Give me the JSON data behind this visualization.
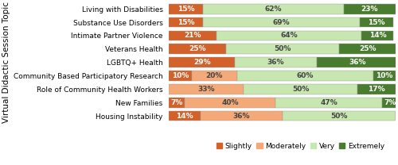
{
  "categories": [
    "Living with Disabilities",
    "Substance Use Disorders",
    "Intimate Partner Violence",
    "Veterans Health",
    "LGBTQ+ Health",
    "Community Based Participatory Research",
    "Role of Community Health Workers",
    "New Families",
    "Housing Instability"
  ],
  "slightly": [
    15,
    15,
    21,
    25,
    29,
    10,
    0,
    7,
    14
  ],
  "moderately": [
    0,
    0,
    0,
    0,
    0,
    20,
    33,
    40,
    36
  ],
  "very": [
    62,
    69,
    64,
    50,
    36,
    60,
    50,
    47,
    50
  ],
  "extremely": [
    23,
    15,
    14,
    25,
    36,
    10,
    17,
    7,
    0
  ],
  "slightly_labels": [
    "15%",
    "15%",
    "21%",
    "25%",
    "29%",
    "10%",
    "",
    "7%",
    "14%"
  ],
  "moderately_labels": [
    "",
    "",
    "",
    "",
    "",
    "20%",
    "33%",
    "40%",
    "36%"
  ],
  "very_labels": [
    "62%",
    "69%",
    "64%",
    "50%",
    "36%",
    "60%",
    "50%",
    "47%",
    "50%"
  ],
  "extremely_labels": [
    "23%",
    "15%",
    "14%",
    "25%",
    "36%",
    "10%",
    "17%",
    "7%",
    ""
  ],
  "color_slightly": "#d2622a",
  "color_moderately": "#f4aa78",
  "color_very": "#c8e6b0",
  "color_extremely": "#4a7c2f",
  "ylabel": "Virtual Didactic Session Topic",
  "legend_labels": [
    "Slightly",
    "Moderately",
    "Very",
    "Extremely"
  ],
  "bar_height": 0.75,
  "fontsize_labels": 6.5,
  "fontsize_ticks": 6.5,
  "fontsize_legend": 6.5,
  "fontsize_ylabel": 7.5
}
